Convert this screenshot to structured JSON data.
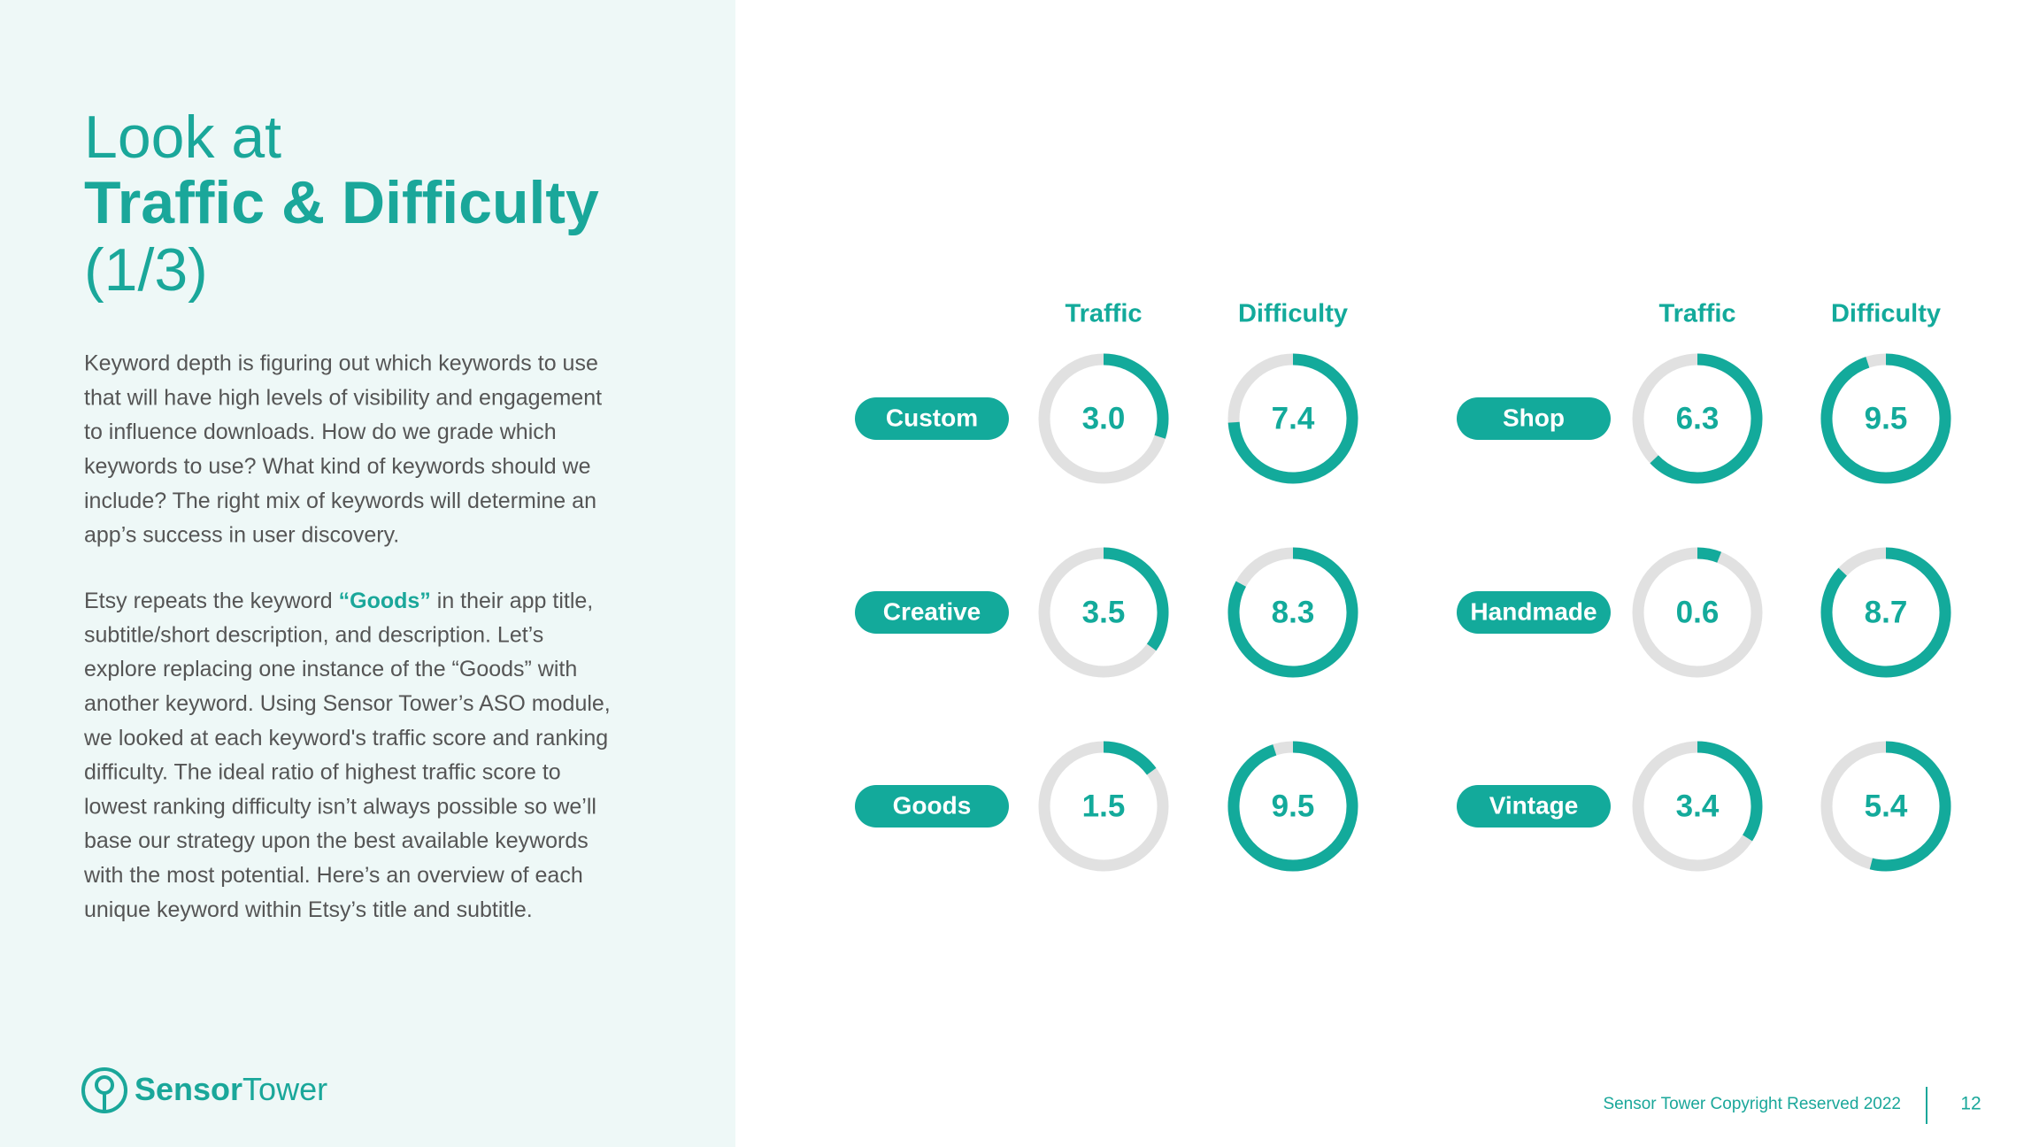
{
  "header": {
    "title_line1": "Look at",
    "title_line2": "Traffic & Difficulty",
    "title_line3": "(1/3)"
  },
  "body": {
    "paragraph1": [
      "Keyword depth is figuring out which keywords to use",
      "that will have high levels of visibility and engagement",
      "to influence downloads. How do we grade which",
      "keywords to use? What kind of keywords should we",
      "include? The right mix of keywords will determine an",
      "app’s success in user discovery."
    ],
    "paragraph2": {
      "first_line": {
        "before": "Etsy repeats the keyword ",
        "highlight": "“Goods”",
        "after": " in their app title,"
      },
      "lines": [
        "subtitle/short description, and description. Let’s",
        "explore replacing one instance of the “Goods” with",
        "another keyword. Using Sensor Tower’s ASO module,",
        "we looked at each keyword's traffic score and ranking",
        "difficulty. The ideal ratio of highest traffic score to",
        "lowest ranking difficulty isn’t always possible so we’ll",
        "base our strategy upon the best available keywords",
        "with the most potential. Here’s an overview of each",
        "unique keyword within Etsy’s title and subtitle."
      ]
    }
  },
  "gauges": {
    "range": [
      0,
      10
    ],
    "column_labels": [
      "Traffic",
      "Difficulty",
      "Traffic",
      "Difficulty"
    ],
    "keywords": [
      "Custom",
      "Creative",
      "Goods",
      "Shop",
      "Handmade",
      "Vintage"
    ],
    "traffic": {
      "values": [
        3.0,
        3.5,
        1.5,
        6.3,
        0.6,
        3.4
      ],
      "value_labels": [
        "3.0",
        "3.5",
        "1.5",
        "6.3",
        "0.6",
        "3.4"
      ]
    },
    "difficulty": {
      "values": [
        7.4,
        8.3,
        9.5,
        9.5,
        8.7,
        5.4
      ],
      "value_labels": [
        "7.4",
        "8.3",
        "9.5",
        "9.5",
        "8.7",
        "5.4"
      ]
    }
  },
  "footer": {
    "logo_bold": "Sensor",
    "logo_light": "Tower",
    "copyright": "Sensor Tower Copyright Reserved 2022",
    "page": 12
  }
}
